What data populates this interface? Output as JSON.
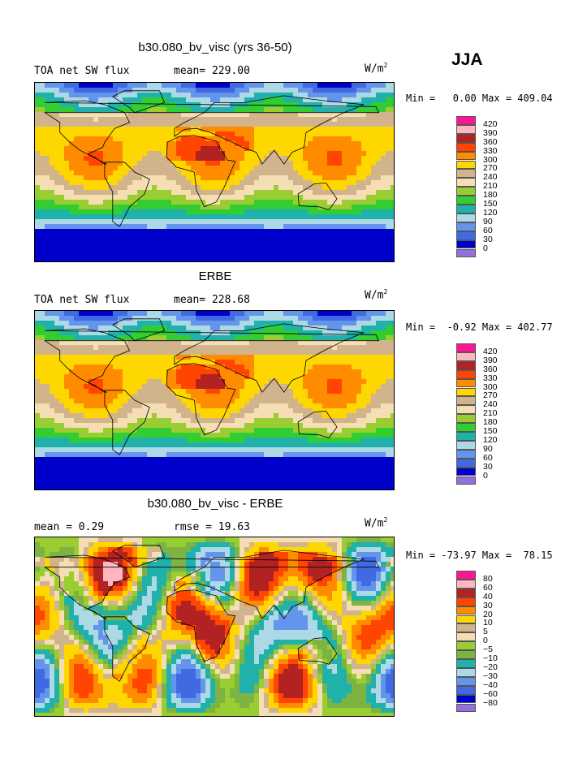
{
  "season": "JJA",
  "panels": [
    {
      "title": "b30.080_bv_visc (yrs 36-50)",
      "left_text": "TOA net SW flux",
      "mid_text": "mean= 229.00",
      "units": "W/m",
      "units_exp": "2",
      "minmax": "Min =   0.00 Max = 409.04"
    },
    {
      "title": "ERBE",
      "left_text": "TOA net SW flux",
      "mid_text": "mean= 228.68",
      "units": "W/m",
      "units_exp": "2",
      "minmax": "Min =  -0.92 Max = 402.77"
    },
    {
      "title": "b30.080_bv_visc - ERBE",
      "left_text": "mean =    0.29",
      "mid_text": "rmse =   19.63",
      "units": "W/m",
      "units_exp": "2",
      "minmax": "Min = -73.97 Max =  78.15"
    }
  ],
  "chart_data": [
    {
      "type": "heatmap",
      "title": "b30.080_bv_visc (yrs 36-50)",
      "subtitle": "TOA net SW flux",
      "mean": 229.0,
      "units": "W/m2",
      "min": 0.0,
      "max": 409.04,
      "levels": [
        0,
        30,
        60,
        90,
        120,
        150,
        180,
        210,
        240,
        270,
        300,
        330,
        360,
        390,
        420
      ],
      "legend_labels": [
        "420",
        "390",
        "360",
        "330",
        "300",
        "270",
        "240",
        "210",
        "180",
        "150",
        "120",
        "90",
        "60",
        "30",
        "0"
      ],
      "colors": [
        "#ff1493",
        "#ffb6c1",
        "#b22222",
        "#ff4500",
        "#ff8c00",
        "#ffd700",
        "#d2b48c",
        "#f5deb3",
        "#9acd32",
        "#32cd32",
        "#20b2aa",
        "#add8e6",
        "#6495ed",
        "#4169e1",
        "#0000cd",
        "#9370db"
      ]
    },
    {
      "type": "heatmap",
      "title": "ERBE",
      "subtitle": "TOA net SW flux",
      "mean": 228.68,
      "units": "W/m2",
      "min": -0.92,
      "max": 402.77,
      "levels": [
        0,
        30,
        60,
        90,
        120,
        150,
        180,
        210,
        240,
        270,
        300,
        330,
        360,
        390,
        420
      ],
      "legend_labels": [
        "420",
        "390",
        "360",
        "330",
        "300",
        "270",
        "240",
        "210",
        "180",
        "150",
        "120",
        "90",
        "60",
        "30",
        "0"
      ],
      "colors": [
        "#ff1493",
        "#ffb6c1",
        "#b22222",
        "#ff4500",
        "#ff8c00",
        "#ffd700",
        "#d2b48c",
        "#f5deb3",
        "#9acd32",
        "#32cd32",
        "#20b2aa",
        "#add8e6",
        "#6495ed",
        "#4169e1",
        "#0000cd",
        "#9370db"
      ]
    },
    {
      "type": "heatmap",
      "title": "b30.080_bv_visc - ERBE",
      "mean": 0.29,
      "rmse": 19.63,
      "units": "W/m2",
      "min": -73.97,
      "max": 78.15,
      "levels": [
        -80,
        -60,
        -40,
        -30,
        -20,
        -10,
        -5,
        0,
        5,
        10,
        20,
        30,
        40,
        60,
        80
      ],
      "legend_labels": [
        "80",
        "60",
        "40",
        "30",
        "20",
        "10",
        "5",
        "0",
        "−5",
        "−10",
        "−20",
        "−30",
        "−40",
        "−60",
        "−80"
      ],
      "colors": [
        "#ff1493",
        "#ffb6c1",
        "#b22222",
        "#ff4500",
        "#ff8c00",
        "#ffd700",
        "#d2b48c",
        "#f5deb3",
        "#9acd32",
        "#7cb342",
        "#20b2aa",
        "#add8e6",
        "#6495ed",
        "#4169e1",
        "#0000cd",
        "#9370db"
      ]
    }
  ]
}
